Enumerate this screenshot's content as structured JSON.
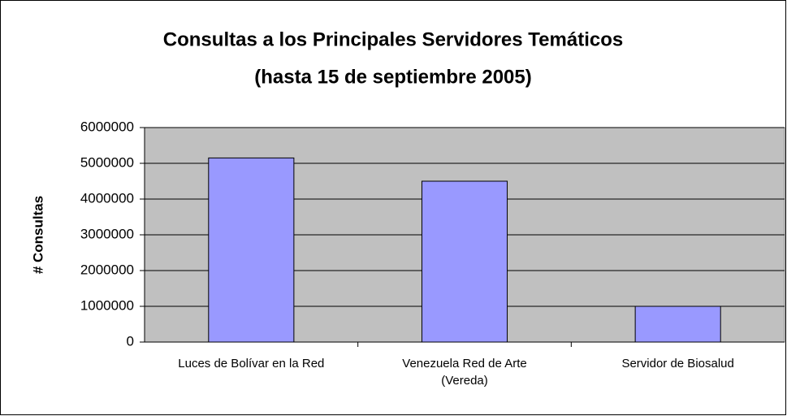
{
  "chart_data": {
    "type": "bar",
    "title": "Consultas a los Principales Servidores Temáticos",
    "subtitle": "(hasta 15 de septiembre 2005)",
    "y_label": "# Consultas",
    "categories": [
      "Luces de Bolívar en la Red",
      "Venezuela Red de Arte (Vereda)",
      "Servidor de Biosalud"
    ],
    "values": [
      5150000,
      4500000,
      1000000
    ],
    "color": "#9999ff",
    "ylim": [
      0,
      6000000
    ],
    "yticks": [
      0,
      1000000,
      2000000,
      3000000,
      4000000,
      5000000,
      6000000
    ],
    "grid": true
  }
}
